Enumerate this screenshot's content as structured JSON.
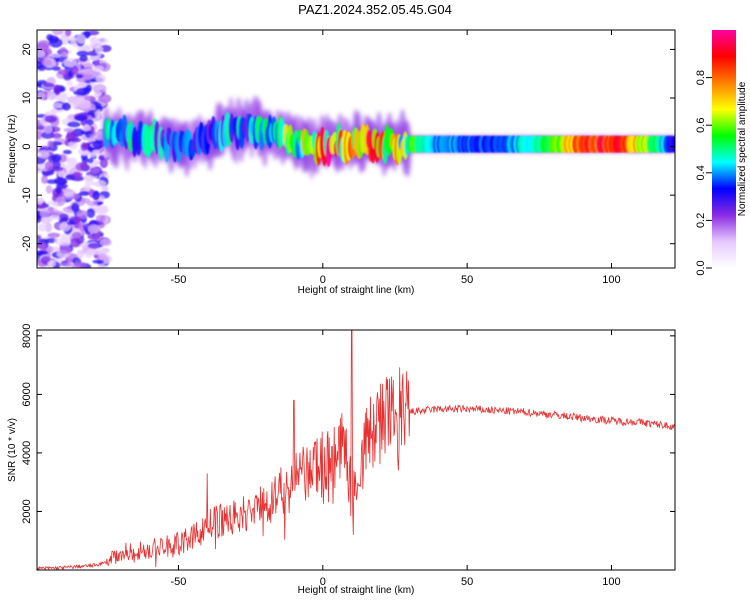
{
  "title": "PAZ1.2024.352.05.45.G04",
  "chart_data": [
    {
      "type": "heatmap",
      "title": "",
      "xlabel": "Height of straight line (km)",
      "ylabel": "Frequency (Hz)",
      "xlim": [
        -99,
        122
      ],
      "ylim": [
        -25,
        24
      ],
      "xticks": [
        -50,
        0,
        50,
        100
      ],
      "yticks": [
        -20,
        -10,
        0,
        10,
        20
      ],
      "colorbar": {
        "label": "Normalized spectral amplitude",
        "range": [
          0,
          1
        ],
        "ticks": [
          0.0,
          0.2,
          0.4,
          0.6,
          0.8
        ],
        "colormap": [
          "#ffffff",
          "#e6c8ff",
          "#8a2be2",
          "#0000ff",
          "#00ffff",
          "#00ff00",
          "#ffff00",
          "#ff8000",
          "#ff0000",
          "#ff00a0"
        ]
      },
      "features": {
        "noise_region_x": [
          -99,
          -75
        ],
        "noise_level": 0.25,
        "signal_ridge_x": [
          -75,
          122
        ],
        "ridge_points": [
          {
            "x": -72,
            "y": 2.5,
            "amp": 0.45
          },
          {
            "x": -60,
            "y": 1.5,
            "amp": 0.4
          },
          {
            "x": -45,
            "y": 0.5,
            "amp": 0.35
          },
          {
            "x": -35,
            "y": 3.0,
            "amp": 0.4
          },
          {
            "x": -25,
            "y": 4.0,
            "amp": 0.4
          },
          {
            "x": -10,
            "y": 1.0,
            "amp": 0.6
          },
          {
            "x": 0,
            "y": 0.0,
            "amp": 0.8
          },
          {
            "x": 10,
            "y": 0.5,
            "amp": 0.7
          },
          {
            "x": 20,
            "y": 0.5,
            "amp": 0.75
          },
          {
            "x": 40,
            "y": 0.5,
            "amp": 0.4
          },
          {
            "x": 60,
            "y": 0.5,
            "amp": 0.35
          },
          {
            "x": 80,
            "y": 0.5,
            "amp": 0.6
          },
          {
            "x": 90,
            "y": 0.5,
            "amp": 0.9
          },
          {
            "x": 105,
            "y": 0.5,
            "amp": 0.85
          },
          {
            "x": 122,
            "y": 0.5,
            "amp": 0.3
          }
        ]
      }
    },
    {
      "type": "line",
      "title": "",
      "xlabel": "Height of straight line (km)",
      "ylabel": "SNR (10 * v/v)",
      "xlim": [
        -99,
        122
      ],
      "ylim": [
        0,
        8200
      ],
      "xticks": [
        -50,
        0,
        50,
        100
      ],
      "yticks": [
        2000,
        4000,
        6000,
        8000
      ],
      "color": "#e83030",
      "series": [
        {
          "x": [
            -99,
            -90,
            -80,
            -75,
            -70,
            -60,
            -50,
            -45,
            -40,
            -35,
            -30,
            -25,
            -20,
            -15,
            -10,
            -5,
            0,
            5,
            8,
            10,
            12,
            15,
            20,
            25,
            30,
            35,
            40,
            50,
            60,
            70,
            80,
            90,
            100,
            110,
            122
          ],
          "y": [
            50,
            80,
            150,
            250,
            600,
            700,
            900,
            1100,
            1500,
            1700,
            1800,
            2000,
            2300,
            2600,
            3000,
            3300,
            3700,
            4000,
            4200,
            3000,
            3000,
            4400,
            5100,
            5300,
            5400,
            5450,
            5500,
            5500,
            5450,
            5400,
            5300,
            5200,
            5100,
            5050,
            4900
          ]
        }
      ],
      "spikes": [
        {
          "x": -40,
          "y": 3300
        },
        {
          "x": -10,
          "y": 5800
        },
        {
          "x": 10,
          "y": 8200
        },
        {
          "x": 10.5,
          "y": 1200
        }
      ]
    }
  ]
}
